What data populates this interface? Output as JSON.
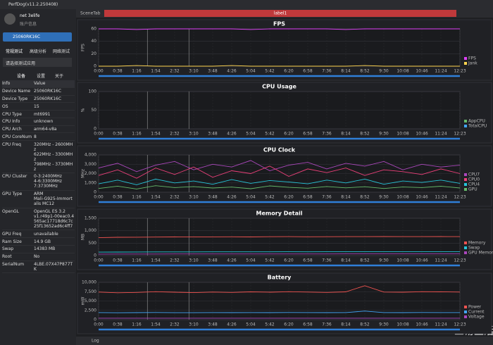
{
  "app": {
    "title": "PerfDog(v11.2.250408)",
    "user_name": "net 3elife",
    "account": "账户信息",
    "device": "25060RK16C",
    "mode_tabs": [
      "常规测试",
      "高级分析",
      "网络测试"
    ],
    "app_select": "请选择测试应用",
    "info_tabs": [
      "设备",
      "设置",
      "关于"
    ],
    "table": {
      "header": [
        "Info",
        "Value"
      ],
      "rows": [
        [
          "Device Name",
          "25060RK16C"
        ],
        [
          "Device Type",
          "25060RK16C"
        ],
        [
          "OS",
          "15"
        ],
        [
          "CPU Type",
          "mt6991"
        ],
        [
          "CPU Info",
          "unknown"
        ],
        [
          "CPU Arch",
          "arm64-v8a"
        ],
        [
          "CPU CoreNum",
          "8"
        ],
        [
          "CPU Freq",
          "320MHz - 2600MHz\n622MHz - 3300MHz\n798MHz - 3730MHz"
        ],
        [
          "CPU Cluster",
          "0-3:2400MHz\n4-6:3300MHz\n7:3730MHz"
        ],
        [
          "GPU Type",
          "ARM\nMali-G925-Immortalis MC12"
        ],
        [
          "OpenGL",
          "OpenGL ES 3.2\nv1.r49p1-00eac0.4565ac17718d6c7c25f13652ad6c4ff7"
        ],
        [
          "GPU Freq",
          "unavailable"
        ],
        [
          "Ram Size",
          "14.9 GB"
        ],
        [
          "Swap",
          "14383 MB"
        ],
        [
          "Root",
          "No"
        ],
        [
          "SerialNum",
          "4LBE.07X47P877TK"
        ]
      ]
    }
  },
  "toolbar": {
    "scene_tab": "SceneTab",
    "label": "label1",
    "log": "Log"
  },
  "watermark": "三易生活",
  "chart_data": [
    {
      "type": "line",
      "title": "FPS",
      "ylabel": "FPS",
      "categories": [
        "0:00",
        "0:38",
        "1:16",
        "1:54",
        "2:32",
        "3:10",
        "3:48",
        "4:26",
        "5:04",
        "5:42",
        "6:20",
        "6:58",
        "7:36",
        "8:14",
        "8:52",
        "9:30",
        "10:08",
        "10:46",
        "11:24",
        "12:23"
      ],
      "ylim": [
        0,
        60
      ],
      "yticks": [
        0,
        20,
        40,
        60
      ],
      "grid": true,
      "series": [
        {
          "name": "FPS",
          "color": "#e040fb",
          "values": [
            60,
            60,
            59,
            60,
            60,
            60,
            60,
            60,
            59,
            60,
            60,
            60,
            60,
            59,
            60,
            60,
            60,
            60,
            60,
            60
          ]
        },
        {
          "name": "Jank",
          "color": "#ffd54f",
          "values": [
            0,
            0,
            1,
            0,
            0,
            0,
            0,
            1,
            0,
            0,
            0,
            0,
            0,
            0,
            1,
            0,
            0,
            0,
            0,
            0
          ]
        }
      ]
    },
    {
      "type": "line",
      "title": "CPU Usage",
      "ylabel": "%",
      "categories": [
        "0:00",
        "0:38",
        "1:16",
        "1:54",
        "2:32",
        "3:10",
        "3:48",
        "4:26",
        "5:04",
        "5:42",
        "6:20",
        "6:58",
        "7:36",
        "8:14",
        "8:52",
        "9:30",
        "10:08",
        "10:46",
        "11:24",
        "12:23"
      ],
      "ylim": [
        0,
        100
      ],
      "yticks": [
        0,
        50,
        100
      ],
      "grid": true,
      "series": [
        {
          "name": "AppCPU",
          "color": "#66bb6a",
          "values": [
            null,
            null,
            null,
            null,
            null,
            null,
            null,
            null,
            null,
            null,
            null,
            null,
            null,
            null,
            null,
            null,
            null,
            null,
            null,
            null
          ]
        },
        {
          "name": "TotalCPU",
          "color": "#42a5f5",
          "values": [
            null,
            null,
            null,
            null,
            null,
            null,
            null,
            null,
            null,
            null,
            null,
            null,
            null,
            null,
            null,
            null,
            null,
            null,
            null,
            null
          ]
        }
      ]
    },
    {
      "type": "line",
      "title": "CPU Clock",
      "ylabel": "MHz",
      "categories": [
        "0:00",
        "0:38",
        "1:16",
        "1:54",
        "2:32",
        "3:10",
        "3:48",
        "4:26",
        "5:04",
        "5:42",
        "6:20",
        "6:58",
        "7:36",
        "8:14",
        "8:52",
        "9:30",
        "10:08",
        "10:46",
        "11:24",
        "12:23"
      ],
      "ylim": [
        0,
        4000
      ],
      "yticks": [
        0,
        {
          "value": 1000,
          "label": "1,000"
        },
        {
          "value": 2000,
          "label": "2,000"
        },
        {
          "value": 3000,
          "label": "3,000"
        },
        {
          "value": 4000,
          "label": "4,000"
        }
      ],
      "grid": true,
      "series": [
        {
          "name": "CPU7",
          "color": "#ab47bc",
          "values": [
            2600,
            3100,
            2200,
            2900,
            3300,
            2400,
            3000,
            2700,
            3400,
            2300,
            2900,
            3200,
            2500,
            3100,
            2800,
            3300,
            2400,
            3000,
            2700,
            2900
          ]
        },
        {
          "name": "CPU0",
          "color": "#ec407a",
          "values": [
            1800,
            2400,
            1500,
            2600,
            1900,
            2700,
            1600,
            2300,
            2000,
            2800,
            1700,
            2500,
            2100,
            2600,
            1800,
            2400,
            2200,
            1900,
            2500,
            2000
          ]
        },
        {
          "name": "CPU4",
          "color": "#26c6da",
          "values": [
            900,
            1300,
            800,
            1400,
            1000,
            1200,
            850,
            1350,
            950,
            1250,
            1100,
            900,
            1300,
            1000,
            1400,
            850,
            1200,
            1050,
            1300,
            950
          ]
        },
        {
          "name": "GPU",
          "color": "#66bb6a",
          "values": [
            400,
            650,
            350,
            700,
            500,
            600,
            450,
            550,
            380,
            680,
            520,
            430,
            610,
            470,
            590,
            400,
            560,
            500,
            640,
            450
          ]
        }
      ]
    },
    {
      "type": "line",
      "title": "Memory Detail",
      "ylabel": "MB",
      "categories": [
        "0:00",
        "0:38",
        "1:16",
        "1:54",
        "2:32",
        "3:10",
        "3:48",
        "4:26",
        "5:04",
        "5:42",
        "6:20",
        "6:58",
        "7:36",
        "8:14",
        "8:52",
        "9:30",
        "10:08",
        "10:46",
        "11:24",
        "12:23"
      ],
      "ylim": [
        0,
        1500
      ],
      "yticks": [
        0,
        500,
        {
          "value": 1000,
          "label": "1,000"
        },
        {
          "value": 1500,
          "label": "1,500"
        }
      ],
      "grid": true,
      "series": [
        {
          "name": "Memory",
          "color": "#ef5350",
          "values": [
            720,
            735,
            740,
            745,
            750,
            748,
            752,
            755,
            750,
            758,
            760,
            755,
            758,
            762,
            760,
            765,
            762,
            760,
            764,
            762
          ]
        },
        {
          "name": "Swap",
          "color": "#26c6da",
          "values": [
            140,
            142,
            145,
            146,
            148,
            147,
            149,
            150,
            150,
            151,
            152,
            151,
            152,
            153,
            152,
            154,
            153,
            153,
            154,
            154
          ]
        },
        {
          "name": "GPU Memory",
          "color": "#ab47bc",
          "values": [
            60,
            62,
            63,
            63,
            64,
            64,
            65,
            65,
            65,
            66,
            66,
            66,
            66,
            67,
            67,
            67,
            67,
            67,
            68,
            68
          ]
        }
      ]
    },
    {
      "type": "line",
      "title": "Battery",
      "ylabel": "mW",
      "categories": [
        "0:00",
        "0:38",
        "1:16",
        "1:54",
        "2:32",
        "3:10",
        "3:48",
        "4:26",
        "5:04",
        "5:42",
        "6:20",
        "6:58",
        "7:36",
        "8:14",
        "8:52",
        "9:30",
        "10:08",
        "10:46",
        "11:24",
        "12:23"
      ],
      "ylim": [
        0,
        10000
      ],
      "yticks": [
        0,
        {
          "value": 2500,
          "label": "2,500"
        },
        {
          "value": 5000,
          "label": "5,000"
        },
        {
          "value": 7500,
          "label": "7,500"
        },
        {
          "value": 10000,
          "label": "10,000"
        }
      ],
      "grid": true,
      "series": [
        {
          "name": "Power",
          "color": "#ef5350",
          "values": [
            7400,
            7200,
            7300,
            7500,
            7350,
            7250,
            7400,
            7300,
            7450,
            7350,
            7500,
            7400,
            7300,
            7450,
            9100,
            7400,
            7350,
            7500,
            7450,
            7400
          ]
        },
        {
          "name": "Current",
          "color": "#42a5f5",
          "values": [
            1900,
            1850,
            1880,
            1920,
            1870,
            1860,
            1900,
            1880,
            1910,
            1890,
            1920,
            1900,
            1880,
            1910,
            2300,
            1900,
            1890,
            1920,
            1910,
            1900
          ]
        },
        {
          "name": "Voltage",
          "color": "#ab47bc",
          "values": [
            400,
            400,
            400,
            400,
            400,
            400,
            400,
            400,
            400,
            400,
            400,
            400,
            400,
            400,
            400,
            400,
            400,
            400,
            400,
            400
          ]
        }
      ]
    }
  ]
}
